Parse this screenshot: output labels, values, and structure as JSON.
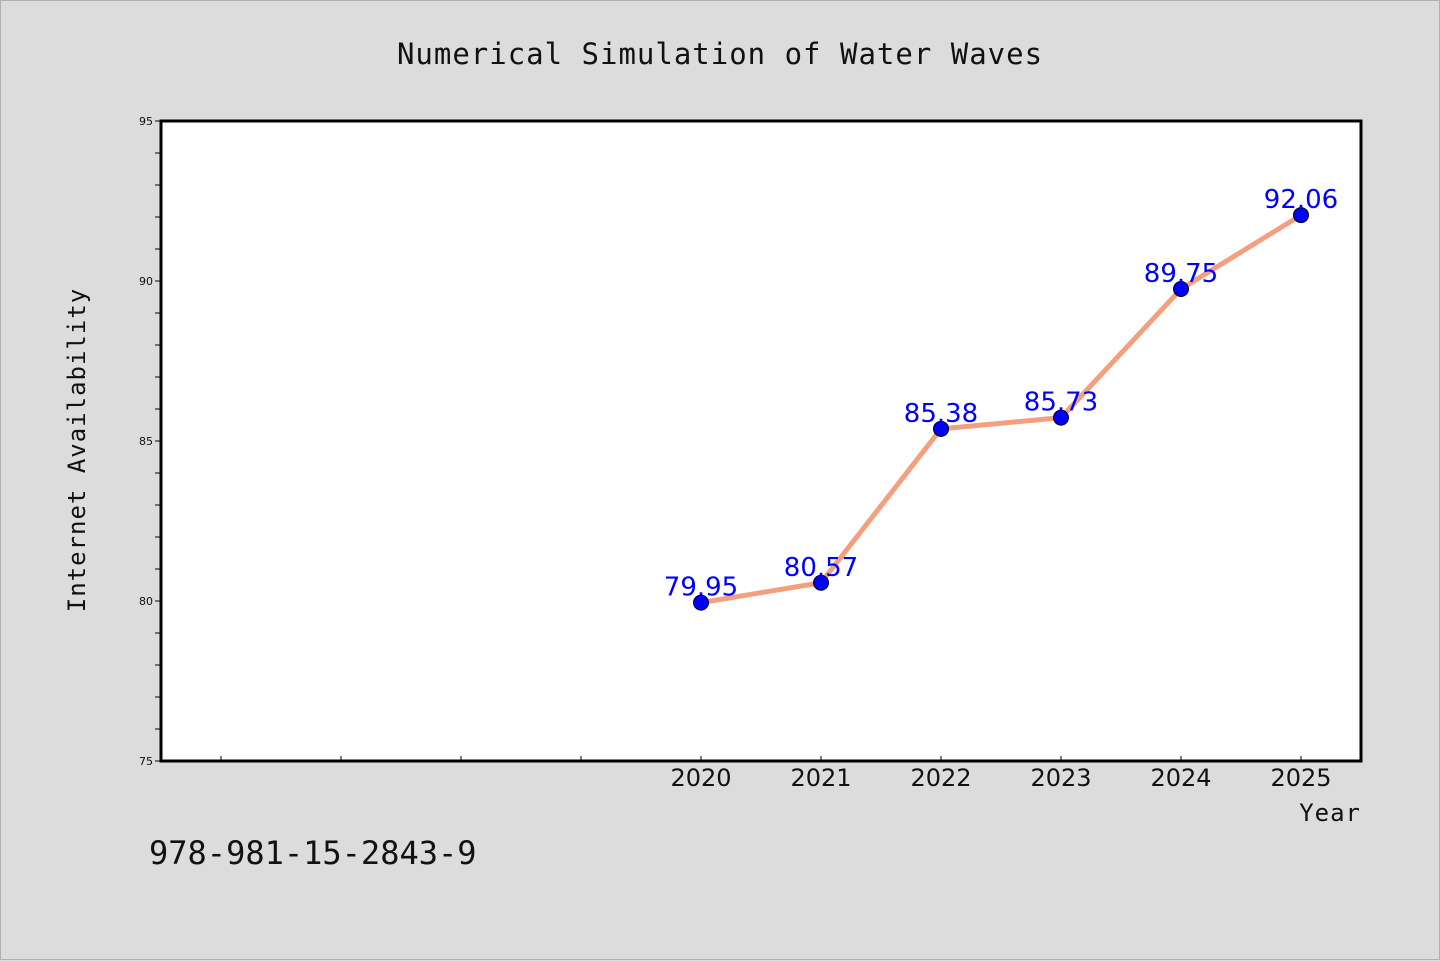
{
  "chart_data": {
    "type": "line",
    "title": "Numerical Simulation of Water Waves",
    "xlabel": "Year",
    "ylabel": "Internet Availability",
    "categories": [
      "2020",
      "2021",
      "2022",
      "2023",
      "2024",
      "2025"
    ],
    "series": [
      {
        "values": [
          79.95,
          80.57,
          85.38,
          85.73,
          89.75,
          92.06
        ]
      }
    ],
    "data_labels": [
      "79.95",
      "80.57",
      "85.38",
      "85.73",
      "89.75",
      "92.06"
    ],
    "ylim": [
      75,
      95
    ],
    "y_ticks": [
      "75",
      "80",
      "85",
      "90",
      "95"
    ],
    "grid": false,
    "colors": {
      "line": "#f4a07f",
      "marker": "#0000ff",
      "label": "#0000ff",
      "background": "#dcdcdc",
      "plot_bg": "#ffffff"
    }
  },
  "footer": {
    "isbn": "978-981-15-2843-9"
  }
}
